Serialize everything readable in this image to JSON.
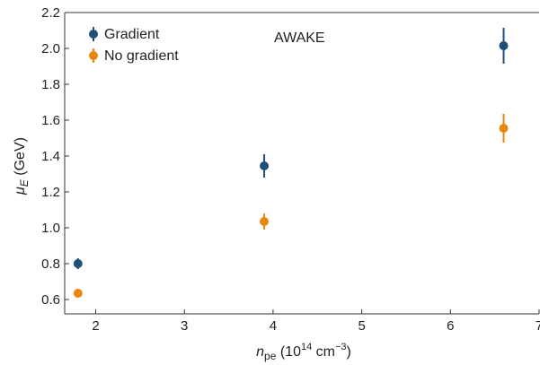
{
  "chart_data": {
    "type": "scatter",
    "annotation": "AWAKE",
    "xlabel": {
      "base": "n",
      "sub": "pe",
      "unit_prefix": " (10",
      "unit_sup": "14",
      "unit_mid": " cm",
      "unit_sup2": "−3",
      "unit_suffix": ")"
    },
    "ylabel": {
      "base": "μ",
      "sub": "E",
      "unit": " (GeV)"
    },
    "xlim": [
      1.65,
      7.0
    ],
    "ylim": [
      0.52,
      2.2
    ],
    "xticks": [
      2,
      3,
      4,
      5,
      6,
      7
    ],
    "xtick_labels": [
      "2",
      "3",
      "4",
      "5",
      "6",
      "7"
    ],
    "yticks": [
      0.6,
      0.8,
      1.0,
      1.2,
      1.4,
      1.6,
      1.8,
      2.0,
      2.2
    ],
    "ytick_labels": [
      "0.6",
      "0.8",
      "1.0",
      "1.2",
      "1.4",
      "1.6",
      "1.8",
      "2.0",
      "2.2"
    ],
    "grid": false,
    "legend_position": "top-left",
    "series": [
      {
        "name": "Gradient",
        "color": "#1f4e79",
        "points": [
          {
            "x": 1.8,
            "y": 0.8,
            "err": 0.03
          },
          {
            "x": 3.9,
            "y": 1.345,
            "err": 0.065
          },
          {
            "x": 6.6,
            "y": 2.015,
            "err": 0.1
          }
        ]
      },
      {
        "name": "No gradient",
        "color": "#e8870e",
        "points": [
          {
            "x": 1.8,
            "y": 0.635,
            "err": 0.02
          },
          {
            "x": 3.9,
            "y": 1.035,
            "err": 0.045
          },
          {
            "x": 6.6,
            "y": 1.555,
            "err": 0.08
          }
        ]
      }
    ]
  }
}
